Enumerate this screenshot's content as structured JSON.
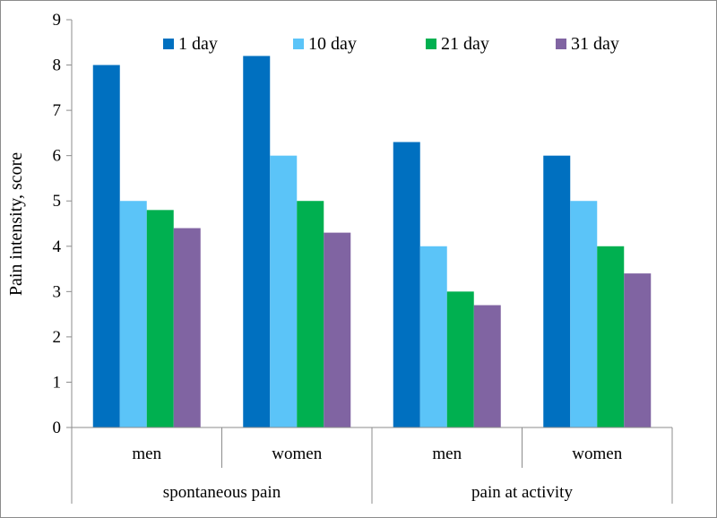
{
  "chart_data": {
    "type": "bar",
    "title": "",
    "xlabel": "",
    "ylabel": "Pain   intensity,  score",
    "ylim": [
      0,
      9
    ],
    "yticks": [
      0,
      1,
      2,
      3,
      4,
      5,
      6,
      7,
      8,
      9
    ],
    "grid": false,
    "legend_position": "top",
    "categories": [
      "men",
      "women",
      "men",
      "women"
    ],
    "groups": [
      {
        "label": "spontaneous pain",
        "span": [
          0,
          1
        ]
      },
      {
        "label": "pain at activity",
        "span": [
          2,
          3
        ]
      }
    ],
    "series": [
      {
        "name": "1 day",
        "color": "#0070C0",
        "values": [
          8.0,
          8.2,
          6.3,
          6.0
        ]
      },
      {
        "name": "10 day",
        "color": "#5BC4F8",
        "values": [
          5.0,
          6.0,
          4.0,
          5.0
        ]
      },
      {
        "name": "21 day",
        "color": "#00B050",
        "values": [
          4.8,
          5.0,
          3.0,
          4.0
        ]
      },
      {
        "name": "31 day",
        "color": "#8064A2",
        "values": [
          4.4,
          4.3,
          2.7,
          3.4
        ]
      }
    ]
  }
}
